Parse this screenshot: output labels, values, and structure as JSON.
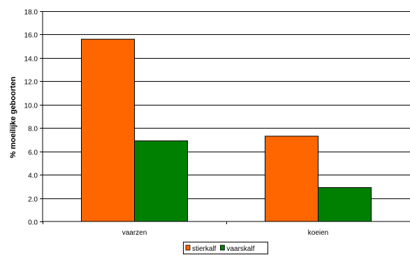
{
  "chart_data": {
    "type": "bar",
    "categories": [
      "vaarzen",
      "koeien"
    ],
    "series": [
      {
        "name": "stierkalf",
        "values": [
          15.6,
          7.3
        ],
        "color": "#ff6600"
      },
      {
        "name": "vaarskalf",
        "values": [
          6.9,
          2.9
        ],
        "color": "#008000"
      }
    ],
    "title": "",
    "xlabel": "",
    "ylabel": "% moeilijke geboorten",
    "ylim": [
      0,
      18
    ],
    "yticks": [
      "0.0",
      "2.0",
      "4.0",
      "6.0",
      "8.0",
      "10.0",
      "12.0",
      "14.0",
      "16.0",
      "18.0"
    ],
    "grid": true,
    "legend_position": "bottom"
  }
}
